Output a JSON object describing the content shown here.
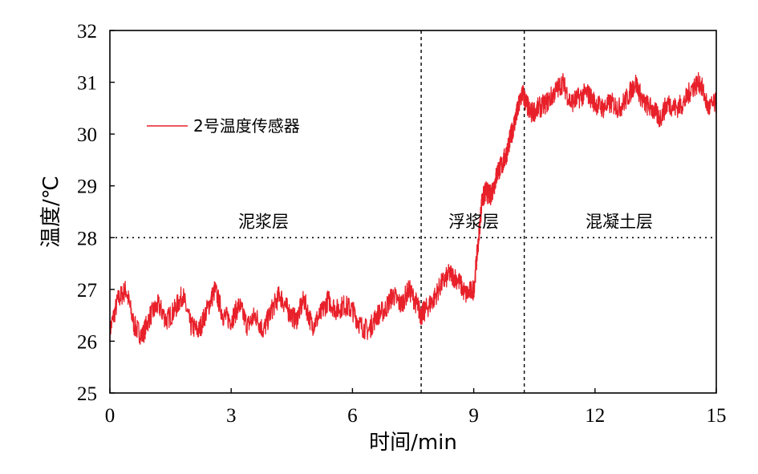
{
  "chart_data": {
    "type": "line",
    "xlabel": "时间/min",
    "ylabel": "温度/℃",
    "xlim": [
      0,
      15
    ],
    "ylim": [
      25,
      32
    ],
    "xticks": [
      0,
      3,
      6,
      9,
      12,
      15
    ],
    "yticks": [
      25,
      26,
      27,
      28,
      29,
      30,
      31,
      32
    ],
    "grid": false,
    "legend_position": "upper-left",
    "line_color": "#e8202a",
    "reference_lines": {
      "vertical": [
        7.7,
        10.25
      ],
      "horizontal": [
        28.0
      ]
    },
    "regions": [
      {
        "label": "泥浆层",
        "x": 3.8,
        "y": 28.2
      },
      {
        "label": "浮浆层",
        "x": 9.0,
        "y": 28.2
      },
      {
        "label": "混凝土层",
        "x": 12.6,
        "y": 28.2
      }
    ],
    "series": [
      {
        "name": "2号温度传感器",
        "x": [
          0,
          0.2,
          0.4,
          0.6,
          0.8,
          1.0,
          1.2,
          1.4,
          1.6,
          1.8,
          2.0,
          2.2,
          2.4,
          2.6,
          2.8,
          3.0,
          3.2,
          3.4,
          3.6,
          3.8,
          4.0,
          4.2,
          4.4,
          4.6,
          4.8,
          5.0,
          5.2,
          5.4,
          5.6,
          5.8,
          6.0,
          6.2,
          6.4,
          6.6,
          6.8,
          7.0,
          7.2,
          7.4,
          7.6,
          7.7,
          7.8,
          8.0,
          8.2,
          8.4,
          8.6,
          8.8,
          9.0,
          9.1,
          9.2,
          9.3,
          9.4,
          9.5,
          9.6,
          9.7,
          9.8,
          9.9,
          10.0,
          10.1,
          10.2,
          10.3,
          10.4,
          10.6,
          10.8,
          11.0,
          11.2,
          11.4,
          11.6,
          11.8,
          12.0,
          12.2,
          12.4,
          12.6,
          12.8,
          13.0,
          13.2,
          13.4,
          13.6,
          13.8,
          14.0,
          14.2,
          14.4,
          14.6,
          14.8,
          15.0
        ],
        "values": [
          26.2,
          26.8,
          27.0,
          26.3,
          26.1,
          26.5,
          26.7,
          26.4,
          26.6,
          26.9,
          26.3,
          26.2,
          26.6,
          27.0,
          26.5,
          26.4,
          26.7,
          26.3,
          26.5,
          26.2,
          26.6,
          26.9,
          26.6,
          26.4,
          26.8,
          26.3,
          26.5,
          26.8,
          26.6,
          26.7,
          26.6,
          26.3,
          26.2,
          26.5,
          26.6,
          26.9,
          26.7,
          27.0,
          26.7,
          26.5,
          26.6,
          26.8,
          27.1,
          27.3,
          27.2,
          26.9,
          27.0,
          27.8,
          28.7,
          28.9,
          28.8,
          29.0,
          29.3,
          29.4,
          29.6,
          29.9,
          30.2,
          30.5,
          30.8,
          30.6,
          30.4,
          30.5,
          30.6,
          30.8,
          31.0,
          30.6,
          30.7,
          30.8,
          30.6,
          30.5,
          30.6,
          30.5,
          30.7,
          31.0,
          30.6,
          30.5,
          30.3,
          30.6,
          30.5,
          30.6,
          30.9,
          31.0,
          30.5,
          30.6
        ]
      }
    ]
  }
}
